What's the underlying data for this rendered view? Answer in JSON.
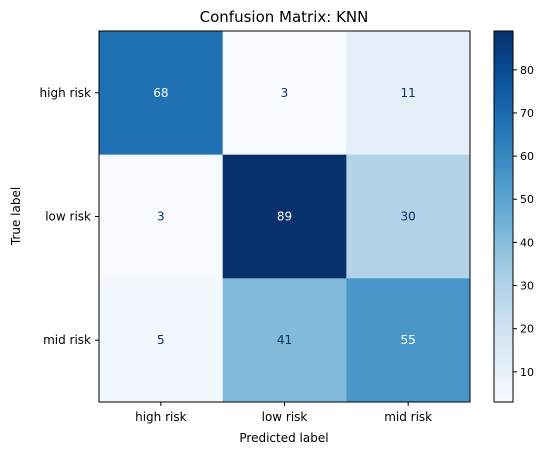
{
  "chart_data": {
    "type": "heatmap",
    "title": "Confusion Matrix: KNN",
    "xlabel": "Predicted label",
    "ylabel": "True label",
    "x_categories": [
      "high risk",
      "low risk",
      "mid risk"
    ],
    "y_categories": [
      "high risk",
      "low risk",
      "mid risk"
    ],
    "values": [
      [
        68,
        3,
        11
      ],
      [
        3,
        89,
        30
      ],
      [
        5,
        41,
        55
      ]
    ],
    "colormap": "Blues",
    "colorbar": {
      "range": [
        3,
        89
      ],
      "ticks": [
        10,
        20,
        30,
        40,
        50,
        60,
        70,
        80
      ]
    },
    "grid": false
  }
}
